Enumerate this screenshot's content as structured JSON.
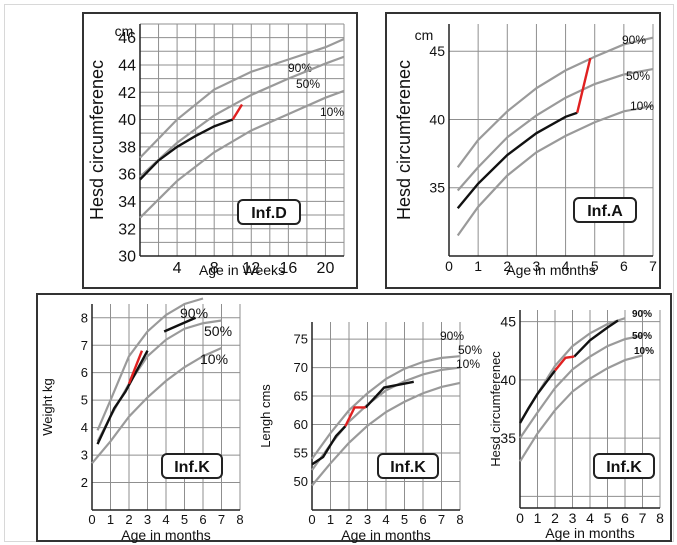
{
  "colors": {
    "grid": "#8f8f8f",
    "ref": "#9a9a9a",
    "patient": "#111111",
    "abnormal": "#e02020",
    "frame": "#333333"
  },
  "chart_data": [
    {
      "id": "infD",
      "type": "line",
      "title": "Inf.D",
      "unit": "cm",
      "xlabel": "Age in Weeks",
      "ylabel": "Hesd circumferenec",
      "xlim": [
        0,
        22
      ],
      "ylim": [
        30,
        47
      ],
      "xticks": [
        4,
        8,
        12,
        16,
        20
      ],
      "yticks": [
        30,
        32,
        34,
        36,
        38,
        40,
        42,
        44,
        46
      ],
      "reference": [
        {
          "name": "90%",
          "x": [
            0,
            4,
            8,
            12,
            16,
            20,
            22
          ],
          "y": [
            37.2,
            40,
            42.2,
            43.5,
            44.4,
            45.3,
            45.9
          ]
        },
        {
          "name": "50%",
          "x": [
            0,
            4,
            8,
            12,
            16,
            20,
            22
          ],
          "y": [
            35.8,
            38.3,
            40.3,
            41.8,
            43,
            44.1,
            44.6
          ]
        },
        {
          "name": "10%",
          "x": [
            0,
            4,
            8,
            12,
            16,
            20,
            22
          ],
          "y": [
            32.8,
            35.5,
            37.6,
            39.2,
            40.4,
            41.6,
            42.1
          ]
        }
      ],
      "patient": {
        "x": [
          0,
          2,
          4,
          6,
          8,
          10
        ],
        "y": [
          35.6,
          37,
          38,
          38.8,
          39.5,
          40
        ]
      },
      "abnormal": {
        "x": [
          10,
          11
        ],
        "y": [
          40,
          41.1
        ]
      }
    },
    {
      "id": "infA",
      "type": "line",
      "title": "Inf.A",
      "unit": "cm",
      "xlabel": "Age in months",
      "ylabel": "Hesd circumferenec",
      "xlim": [
        0,
        7
      ],
      "ylim": [
        30,
        47
      ],
      "xticks": [
        0,
        1,
        2,
        3,
        4,
        5,
        6,
        7
      ],
      "yticks": [
        35,
        40,
        45
      ],
      "reference": [
        {
          "name": "90%",
          "x": [
            0.3,
            1,
            2,
            3,
            4,
            5,
            6,
            7
          ],
          "y": [
            36.5,
            38.5,
            40.6,
            42.3,
            43.6,
            44.6,
            45.5,
            46
          ]
        },
        {
          "name": "50%",
          "x": [
            0.3,
            1,
            2,
            3,
            4,
            5,
            6,
            7
          ],
          "y": [
            34.8,
            36.5,
            38.7,
            40.3,
            41.6,
            42.6,
            43.3,
            43.7
          ]
        },
        {
          "name": "10%",
          "x": [
            0.3,
            1,
            2,
            3,
            4,
            5,
            6,
            7
          ],
          "y": [
            31.5,
            33.6,
            35.9,
            37.6,
            38.8,
            39.8,
            40.6,
            41
          ]
        }
      ],
      "patient": {
        "x": [
          0.3,
          1,
          2,
          3,
          4,
          4.4
        ],
        "y": [
          33.5,
          35.3,
          37.4,
          39,
          40.2,
          40.5
        ]
      },
      "abnormal": {
        "x": [
          4.4,
          4.85
        ],
        "y": [
          40.5,
          44.5
        ]
      }
    },
    {
      "id": "infK_weight",
      "type": "line",
      "title": "Inf.K",
      "unit": "",
      "xlabel": "Age in months",
      "ylabel": "Weight kg",
      "xlim": [
        0,
        8
      ],
      "ylim": [
        1,
        8.5
      ],
      "xticks": [
        0,
        1,
        2,
        3,
        4,
        5,
        6,
        7,
        8
      ],
      "yticks": [
        2,
        3,
        4,
        5,
        6,
        7,
        8
      ],
      "reference": [
        {
          "name": "90%",
          "x": [
            0.3,
            1,
            2,
            3,
            4,
            5,
            6
          ],
          "y": [
            3.9,
            5,
            6.6,
            7.5,
            8.1,
            8.5,
            8.7
          ]
        },
        {
          "name": "50%",
          "x": [
            0.3,
            1,
            2,
            3,
            4,
            5,
            6,
            7
          ],
          "y": [
            3.5,
            4.4,
            5.6,
            6.6,
            7.2,
            7.6,
            7.8,
            7.9
          ]
        },
        {
          "name": "10%",
          "x": [
            0,
            1,
            2,
            3,
            4,
            5,
            6,
            7
          ],
          "y": [
            2.7,
            3.5,
            4.4,
            5.1,
            5.7,
            6.2,
            6.6,
            6.9
          ]
        }
      ],
      "patient": {
        "x": [
          0.3,
          1.2,
          1.8,
          3
        ],
        "y": [
          3.4,
          4.7,
          5.3,
          6.8
        ]
      },
      "patient2": {
        "x": [
          3.9,
          5.6
        ],
        "y": [
          7.5,
          8
        ]
      },
      "abnormal": {
        "x": [
          2,
          2.7
        ],
        "y": [
          5.6,
          6.8
        ]
      }
    },
    {
      "id": "infK_length",
      "type": "line",
      "title": "Inf.K",
      "unit": "",
      "xlabel": "Age in months",
      "ylabel": "Lengh cms",
      "xlim": [
        0,
        8
      ],
      "ylim": [
        45,
        78
      ],
      "xticks": [
        0,
        1,
        2,
        3,
        4,
        5,
        6,
        7,
        8
      ],
      "yticks": [
        50,
        55,
        60,
        65,
        70,
        75
      ],
      "reference": [
        {
          "name": "90%",
          "x": [
            0,
            1,
            2,
            3,
            4,
            5,
            6,
            7,
            8
          ],
          "y": [
            54,
            58.5,
            62.5,
            65.5,
            68,
            69.8,
            71,
            71.7,
            72
          ]
        },
        {
          "name": "50%",
          "x": [
            0,
            1,
            2,
            3,
            4,
            5,
            6,
            7,
            8
          ],
          "y": [
            52,
            56.5,
            60.5,
            63.5,
            66,
            67.6,
            68.8,
            69.6,
            70
          ]
        },
        {
          "name": "10%",
          "x": [
            0,
            1,
            2,
            3,
            4,
            5,
            6,
            7,
            8
          ],
          "y": [
            49.3,
            53.2,
            56.8,
            59.8,
            62.2,
            64,
            65.5,
            66.6,
            67.3
          ]
        }
      ],
      "patient": {
        "x": [
          0,
          0.6,
          1.3,
          1.8
        ],
        "y": [
          53,
          54.3,
          58,
          59.7
        ]
      },
      "patient2": {
        "x": [
          2.9,
          3.9,
          5.5
        ],
        "y": [
          63,
          66.5,
          67.5
        ]
      },
      "abnormal": {
        "x": [
          1.8,
          2.3,
          2.9
        ],
        "y": [
          59.7,
          63,
          63
        ]
      }
    },
    {
      "id": "infK_head",
      "type": "line",
      "title": "Inf.K",
      "unit": "",
      "xlabel": "Age in months",
      "ylabel": "Hesd circumferenec",
      "xlim": [
        0,
        8
      ],
      "ylim": [
        29,
        46
      ],
      "xticks": [
        0,
        1,
        2,
        3,
        4,
        5,
        6,
        7,
        8
      ],
      "yticks": [
        35,
        40,
        45
      ],
      "reference": [
        {
          "name": "90%",
          "x": [
            0,
            1,
            2,
            3,
            4,
            5,
            6
          ],
          "y": [
            36.3,
            38.8,
            41.2,
            42.9,
            44,
            44.8,
            45.3
          ]
        },
        {
          "name": "50%",
          "x": [
            0,
            1,
            2,
            3,
            4,
            5,
            6,
            7
          ],
          "y": [
            35,
            37.2,
            39.3,
            40.9,
            42,
            42.9,
            43.5,
            43.8
          ]
        },
        {
          "name": "10%",
          "x": [
            0,
            1,
            2,
            3,
            4,
            5,
            6,
            7
          ],
          "y": [
            33,
            35.4,
            37.4,
            39,
            40.1,
            41,
            41.7,
            42.1
          ]
        }
      ],
      "patient": {
        "x": [
          0,
          0.5,
          1,
          1.5,
          2
        ],
        "y": [
          36.3,
          37.6,
          38.8,
          39.8,
          40.8
        ]
      },
      "patient2": {
        "x": [
          3.1,
          4,
          5,
          5.6
        ],
        "y": [
          42,
          43.4,
          44.5,
          45.1
        ]
      },
      "abnormal": {
        "x": [
          2,
          2.6,
          3.1
        ],
        "y": [
          40.8,
          41.9,
          42
        ]
      }
    }
  ]
}
